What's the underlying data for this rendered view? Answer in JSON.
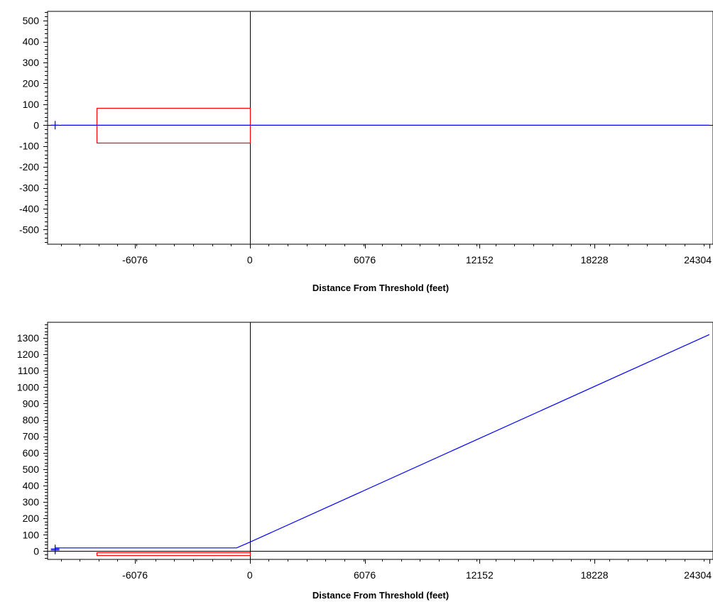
{
  "chart_data": [
    {
      "type": "line",
      "view": "plan",
      "xlabel": "Distance From Threshold (feet)",
      "ylabel": "",
      "xlim": [
        -10700,
        24500
      ],
      "ylim": [
        -570,
        545
      ],
      "x_ticks": [
        -6076,
        0,
        6076,
        12152,
        18228,
        24304
      ],
      "y_ticks": [
        500,
        400,
        300,
        200,
        100,
        0,
        -100,
        -200,
        -300,
        -400,
        -500
      ],
      "reference_lines": {
        "x": 0,
        "y": 0
      },
      "colors": {
        "path": "#0000ff",
        "zone": "#ff0000",
        "marker": "#0000ff",
        "axes": "#000000"
      },
      "series": [
        {
          "x": [
            -10000,
            24304
          ],
          "y": [
            0,
            0
          ]
        }
      ],
      "zone": {
        "x": [
          -8100,
          0
        ],
        "y": [
          -83,
          83
        ]
      },
      "markers": [
        {
          "x": -10300,
          "y": 0
        }
      ]
    },
    {
      "type": "line",
      "view": "profile",
      "xlabel": "Distance From Threshold (feet)",
      "ylabel": "",
      "xlim": [
        -10700,
        24500
      ],
      "ylim": [
        -50,
        1395
      ],
      "x_ticks": [
        -6076,
        0,
        6076,
        12152,
        18228,
        24304
      ],
      "y_ticks": [
        1300,
        1200,
        1100,
        1000,
        900,
        800,
        700,
        600,
        500,
        400,
        300,
        200,
        100,
        0
      ],
      "reference_lines": {
        "x": 0,
        "y": 0
      },
      "colors": {
        "path": "#0000ff",
        "zone": "#ff0000",
        "marker": "#0000ff",
        "axes": "#000000"
      },
      "series": [
        {
          "x": [
            -10300,
            -700,
            0,
            24304
          ],
          "y": [
            20,
            20,
            55,
            1320
          ]
        }
      ],
      "zone": {
        "x": [
          -8100,
          0
        ],
        "y": [
          -25,
          -5
        ]
      },
      "markers": [
        {
          "x": -10300,
          "y": 7
        },
        {
          "x": -10300,
          "y": 14
        }
      ]
    }
  ]
}
